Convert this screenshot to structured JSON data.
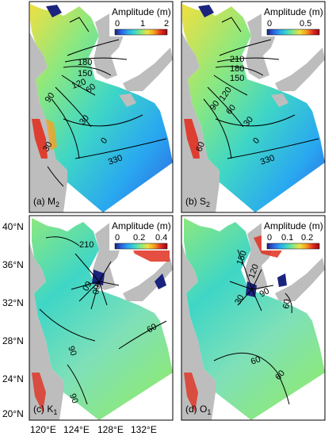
{
  "colormap": [
    "#1a237e",
    "#2f62e0",
    "#29a8f0",
    "#3fd6c6",
    "#8be880",
    "#f0e040",
    "#f5a020",
    "#e03020",
    "#a00010"
  ],
  "colors": {
    "land": "#bdbdbd",
    "frame": "#000000",
    "background": "#ffffff"
  },
  "axes": {
    "lon_labels": [
      "120°E",
      "124°E",
      "128°E",
      "132°E"
    ],
    "lat_labels": [
      "40°N",
      "36°N",
      "32°N",
      "28°N",
      "24°N",
      "20°N"
    ]
  },
  "panels": [
    {
      "key": "m2",
      "label": "(a) M",
      "sub": "2",
      "cb_title": "Amplitude (m)",
      "cb_ticks": [
        "0",
        "1",
        "2"
      ],
      "contours": [
        "180",
        "150",
        "120",
        "90",
        "60",
        "30",
        "0",
        "330",
        "30"
      ]
    },
    {
      "key": "s2",
      "label": "(b) S",
      "sub": "2",
      "cb_title": "Amplitude (m)",
      "cb_ticks": [
        "0",
        "0.5"
      ],
      "contours": [
        "210",
        "180",
        "150",
        "120",
        "90",
        "60",
        "30",
        "0",
        "330",
        "60"
      ]
    },
    {
      "key": "k1",
      "label": "(c) K",
      "sub": "1",
      "cb_title": "Amplitude (m)",
      "cb_ticks": [
        "0",
        "0.2",
        "0.4"
      ],
      "contours": [
        "210",
        "09",
        "09",
        "60",
        "90",
        "90"
      ]
    },
    {
      "key": "o1",
      "label": "(d) O",
      "sub": "1",
      "cb_title": "Amplitude (m)",
      "cb_ticks": [
        "0",
        "0.1",
        "0.2"
      ],
      "contours": [
        "150",
        "120",
        "90",
        "30",
        "60",
        "60",
        "60"
      ]
    }
  ]
}
